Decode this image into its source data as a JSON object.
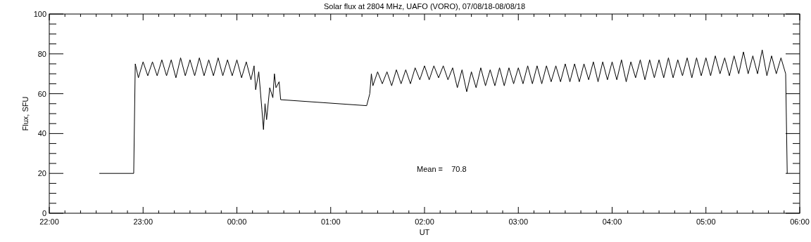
{
  "chart_data": {
    "type": "line",
    "title": "Solar flux at 2804 MHz, UAFO (VORO),  07/08/18-08/08/18",
    "xlabel": "UT",
    "ylabel": "Flux, SFU",
    "xlim": [
      "--08-07T22:00",
      "--08-08T06:00"
    ],
    "ylim": [
      0,
      100
    ],
    "xticks": [
      {
        "value": "--08-07T22:00",
        "label": "22:00"
      },
      {
        "value": "--08-07T23:00",
        "label": "23:00"
      },
      {
        "value": "--08-08T00:00",
        "label": "00:00"
      },
      {
        "value": "--08-08T01:00",
        "label": "01:00"
      },
      {
        "value": "--08-08T02:00",
        "label": "02:00"
      },
      {
        "value": "--08-08T03:00",
        "label": "03:00"
      },
      {
        "value": "--08-08T04:00",
        "label": "04:00"
      },
      {
        "value": "--08-08T05:00",
        "label": "05:00"
      },
      {
        "value": "--08-08T06:00",
        "label": "06:00"
      }
    ],
    "yticks": [
      0,
      20,
      40,
      60,
      80,
      100
    ],
    "grid": false,
    "marker": "none",
    "line_style": "solid",
    "annotations": [
      "Mean =    70.8"
    ],
    "series": [
      {
        "color": "#000000",
        "x": [
          "--08-07T22:32",
          "--08-07T22:54",
          "--08-07T22:55",
          "--08-07T22:57",
          "--08-07T23:00",
          "--08-07T23:03",
          "--08-07T23:06",
          "--08-07T23:09",
          "--08-07T23:12",
          "--08-07T23:15",
          "--08-07T23:18",
          "--08-07T23:21",
          "--08-07T23:24",
          "--08-07T23:27",
          "--08-07T23:30",
          "--08-07T23:33",
          "--08-07T23:36",
          "--08-07T23:39",
          "--08-07T23:42",
          "--08-07T23:45",
          "--08-07T23:48",
          "--08-07T23:51",
          "--08-07T23:54",
          "--08-07T23:57",
          "--08-08T00:00",
          "--08-08T00:03",
          "--08-08T00:06",
          "--08-08T00:09",
          "--08-08T00:11",
          "--08-08T00:12",
          "--08-08T00:14",
          "--08-08T00:16",
          "--08-08T00:17",
          "--08-08T00:18",
          "--08-08T00:19",
          "--08-08T00:21",
          "--08-08T00:23",
          "--08-08T00:24",
          "--08-08T00:25",
          "--08-08T00:27",
          "--08-08T00:28",
          "--08-08T01:23",
          "--08-08T01:25",
          "--08-08T01:26",
          "--08-08T01:27",
          "--08-08T01:30",
          "--08-08T01:33",
          "--08-08T01:36",
          "--08-08T01:39",
          "--08-08T01:42",
          "--08-08T01:45",
          "--08-08T01:48",
          "--08-08T01:51",
          "--08-08T01:54",
          "--08-08T01:57",
          "--08-08T02:00",
          "--08-08T02:03",
          "--08-08T02:06",
          "--08-08T02:09",
          "--08-08T02:12",
          "--08-08T02:15",
          "--08-08T02:18",
          "--08-08T02:21",
          "--08-08T02:24",
          "--08-08T02:27",
          "--08-08T02:30",
          "--08-08T02:33",
          "--08-08T02:36",
          "--08-08T02:39",
          "--08-08T02:42",
          "--08-08T02:45",
          "--08-08T02:48",
          "--08-08T02:51",
          "--08-08T02:54",
          "--08-08T02:57",
          "--08-08T03:00",
          "--08-08T03:03",
          "--08-08T03:06",
          "--08-08T03:09",
          "--08-08T03:12",
          "--08-08T03:15",
          "--08-08T03:18",
          "--08-08T03:21",
          "--08-08T03:24",
          "--08-08T03:27",
          "--08-08T03:30",
          "--08-08T03:33",
          "--08-08T03:36",
          "--08-08T03:39",
          "--08-08T03:42",
          "--08-08T03:45",
          "--08-08T03:48",
          "--08-08T03:51",
          "--08-08T03:54",
          "--08-08T03:57",
          "--08-08T04:00",
          "--08-08T04:03",
          "--08-08T04:06",
          "--08-08T04:09",
          "--08-08T04:12",
          "--08-08T04:15",
          "--08-08T04:18",
          "--08-08T04:21",
          "--08-08T04:24",
          "--08-08T04:27",
          "--08-08T04:30",
          "--08-08T04:33",
          "--08-08T04:36",
          "--08-08T04:39",
          "--08-08T04:42",
          "--08-08T04:45",
          "--08-08T04:48",
          "--08-08T04:51",
          "--08-08T04:54",
          "--08-08T04:57",
          "--08-08T05:00",
          "--08-08T05:03",
          "--08-08T05:06",
          "--08-08T05:09",
          "--08-08T05:12",
          "--08-08T05:15",
          "--08-08T05:18",
          "--08-08T05:21",
          "--08-08T05:24",
          "--08-08T05:27",
          "--08-08T05:30",
          "--08-08T05:33",
          "--08-08T05:36",
          "--08-08T05:39",
          "--08-08T05:42",
          "--08-08T05:45",
          "--08-08T05:48",
          "--08-08T05:51",
          "--08-08T05:52"
        ],
        "values": [
          20,
          20,
          75,
          68,
          76,
          69,
          76,
          69,
          77,
          69,
          77,
          68,
          78,
          69,
          77,
          69,
          78,
          69,
          77,
          69,
          78,
          69,
          77,
          69,
          77,
          68,
          76,
          67,
          74,
          62,
          71,
          52,
          42,
          55,
          47,
          63,
          58,
          70,
          63,
          66,
          57,
          54,
          60,
          70,
          64,
          71,
          65,
          71,
          64,
          72,
          65,
          72,
          65,
          73,
          67,
          74,
          67,
          74,
          68,
          74,
          67,
          73,
          63,
          72,
          61,
          71,
          63,
          73,
          64,
          72,
          64,
          73,
          64,
          73,
          65,
          73,
          65,
          74,
          65,
          74,
          65,
          74,
          66,
          74,
          66,
          75,
          66,
          75,
          66,
          75,
          67,
          76,
          66,
          76,
          67,
          76,
          67,
          77,
          66,
          76,
          68,
          77,
          67,
          77,
          68,
          77,
          68,
          78,
          68,
          77,
          69,
          78,
          68,
          78,
          69,
          78,
          69,
          79,
          70,
          78,
          69,
          79,
          70,
          81,
          70,
          79,
          70,
          82,
          69,
          79,
          70,
          78,
          70,
          20
        ]
      }
    ]
  }
}
